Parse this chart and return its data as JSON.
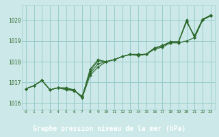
{
  "title": "Graphe pression niveau de la mer (hPa)",
  "bg_color": "#cce8e8",
  "grid_color": "#99cccc",
  "line_color": "#2d6a2d",
  "label_bg": "#2d5a2d",
  "label_fg": "#ffffff",
  "xlim": [
    -0.5,
    23.5
  ],
  "ylim": [
    1015.7,
    1020.7
  ],
  "xticks": [
    0,
    1,
    2,
    3,
    4,
    5,
    6,
    7,
    8,
    9,
    10,
    11,
    12,
    13,
    14,
    15,
    16,
    17,
    18,
    19,
    20,
    21,
    22,
    23
  ],
  "yticks": [
    1016,
    1017,
    1018,
    1019,
    1020
  ],
  "series": [
    [
      1016.7,
      1016.85,
      1017.1,
      1016.65,
      1016.75,
      1016.75,
      1016.65,
      1016.25,
      1017.35,
      1017.75,
      1018.0,
      1018.1,
      1018.25,
      1018.35,
      1018.35,
      1018.35,
      1018.65,
      1018.75,
      1018.95,
      1018.95,
      1020.0,
      1019.15,
      1020.0,
      1020.25
    ],
    [
      1016.7,
      1016.85,
      1017.1,
      1016.65,
      1016.75,
      1016.65,
      1016.6,
      1016.35,
      1017.45,
      1017.9,
      1018.0,
      1018.1,
      1018.25,
      1018.35,
      1018.35,
      1018.35,
      1018.6,
      1018.7,
      1018.9,
      1018.9,
      1019.0,
      1019.15,
      1020.0,
      1020.2
    ],
    [
      1016.7,
      1016.85,
      1017.1,
      1016.65,
      1016.75,
      1016.7,
      1016.62,
      1016.3,
      1017.55,
      1018.05,
      1018.0,
      1018.1,
      1018.25,
      1018.35,
      1018.3,
      1018.35,
      1018.65,
      1018.78,
      1018.95,
      1018.95,
      1019.9,
      1019.25,
      1020.05,
      1020.22
    ],
    [
      1016.7,
      1016.85,
      1017.1,
      1016.65,
      1016.75,
      1016.7,
      1016.65,
      1016.3,
      1017.65,
      1018.1,
      1018.0,
      1018.1,
      1018.25,
      1018.35,
      1018.3,
      1018.38,
      1018.65,
      1018.78,
      1018.95,
      1018.95,
      1019.95,
      1019.2,
      1020.02,
      1020.2
    ]
  ]
}
